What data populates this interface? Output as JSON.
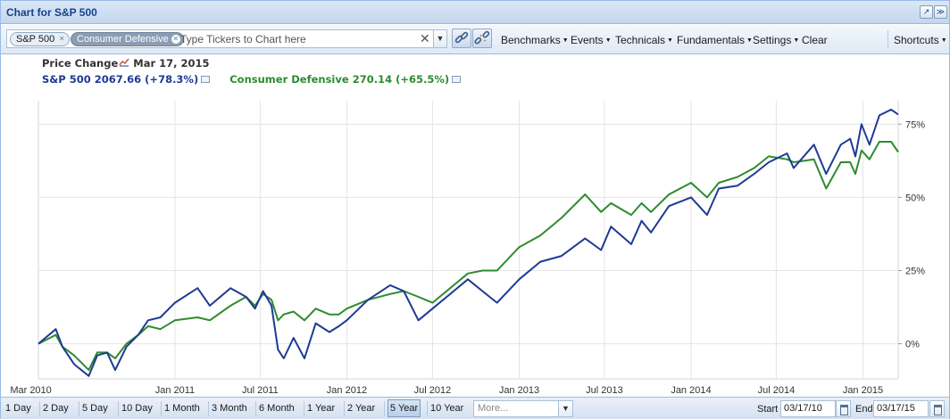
{
  "window": {
    "title": "Chart for S&P 500",
    "restore_icon": "restore-icon",
    "collapse_icon": "collapse-icon"
  },
  "toolbar": {
    "tickers": [
      {
        "label": "S&P 500",
        "remove_icon": "close-icon"
      },
      {
        "label": "Consumer Defensive",
        "remove_icon": "close-icon"
      }
    ],
    "ticker_placeholder": "Type Tickers to Chart here",
    "clear_icon": "clear-x-icon",
    "link_icon": "chain-link-icon",
    "unlink_icon": "broken-link-icon",
    "menus": [
      "Benchmarks",
      "Events",
      "Technicals",
      "Fundamentals",
      "Settings"
    ],
    "clear_label": "Clear",
    "shortcuts_label": "Shortcuts"
  },
  "header": {
    "mode_label": "Price Change",
    "date": "Mar 17, 2015",
    "series": [
      {
        "name": "S&P 500",
        "value": "2067.66",
        "change": "(+78.3%)"
      },
      {
        "name": "Consumer Defensive",
        "value": "270.14",
        "change": "(+65.5%)"
      }
    ]
  },
  "ranges": {
    "options": [
      "1 Day",
      "2 Day",
      "5 Day",
      "10 Day",
      "1 Month",
      "3 Month",
      "6 Month",
      "1 Year",
      "2 Year",
      "5 Year",
      "10 Year"
    ],
    "selected": "5 Year",
    "more_placeholder": "More...",
    "start_label": "Start",
    "start_value": "03/17/10",
    "end_label": "End",
    "end_value": "03/17/15"
  },
  "colors": {
    "sp500": "#1f3a93",
    "consumer_defensive": "#2e8b2e",
    "grid": "#e4e4e4"
  },
  "chart_data": {
    "type": "line",
    "title": "",
    "xlabel": "",
    "ylabel": "",
    "ylim": [
      -12,
      83
    ],
    "y_ticks": [
      0,
      25,
      50,
      75
    ],
    "y_tick_labels": [
      "0%",
      "25%",
      "50%",
      "75%"
    ],
    "xlim": [
      "2010-03-17",
      "2015-03-17"
    ],
    "x_ticks": [
      "2010-03-01",
      "2011-01-01",
      "2011-07-01",
      "2012-01-01",
      "2012-07-01",
      "2013-01-01",
      "2013-07-01",
      "2014-01-01",
      "2014-07-01",
      "2015-01-01"
    ],
    "x_tick_labels": [
      "Mar 2010",
      "Jan 2011",
      "Jul 2011",
      "Jan 2012",
      "Jul 2012",
      "Jan 2013",
      "Jul 2013",
      "Jan 2014",
      "Jul 2014",
      "Jan 2015"
    ],
    "grid": true,
    "series": [
      {
        "name": "S&P 500",
        "color": "#1f3a93",
        "x": [
          "2010-03-17",
          "2010-04-23",
          "2010-05-07",
          "2010-06-01",
          "2010-07-02",
          "2010-07-20",
          "2010-08-10",
          "2010-08-27",
          "2010-09-20",
          "2010-10-15",
          "2010-11-05",
          "2010-12-01",
          "2011-01-01",
          "2011-02-18",
          "2011-03-16",
          "2011-04-29",
          "2011-06-01",
          "2011-06-20",
          "2011-07-07",
          "2011-07-25",
          "2011-08-08",
          "2011-08-20",
          "2011-09-10",
          "2011-10-03",
          "2011-10-27",
          "2011-11-25",
          "2011-12-15",
          "2012-01-01",
          "2012-02-15",
          "2012-04-02",
          "2012-05-01",
          "2012-06-01",
          "2012-07-01",
          "2012-08-15",
          "2012-09-14",
          "2012-10-15",
          "2012-11-15",
          "2013-01-01",
          "2013-02-15",
          "2013-04-01",
          "2013-05-21",
          "2013-06-24",
          "2013-07-15",
          "2013-08-27",
          "2013-09-18",
          "2013-10-08",
          "2013-11-15",
          "2014-01-01",
          "2014-02-04",
          "2014-03-01",
          "2014-04-10",
          "2014-05-15",
          "2014-06-15",
          "2014-07-24",
          "2014-08-07",
          "2014-09-19",
          "2014-10-15",
          "2014-11-15",
          "2014-12-05",
          "2014-12-16",
          "2014-12-29",
          "2015-01-15",
          "2015-02-05",
          "2015-03-02",
          "2015-03-17"
        ],
        "values": [
          0,
          5,
          -1,
          -7,
          -11,
          -4,
          -3,
          -9,
          -1,
          3,
          8,
          9,
          14,
          19,
          13,
          19,
          16,
          12,
          18,
          13,
          -2,
          -5,
          2,
          -5,
          7,
          4,
          6,
          8,
          15,
          20,
          18,
          8,
          12,
          18,
          22,
          18,
          14,
          22,
          28,
          30,
          36,
          32,
          40,
          34,
          42,
          38,
          47,
          50,
          44,
          53,
          54,
          58,
          62,
          65,
          60,
          68,
          58,
          68,
          70,
          64,
          75,
          68,
          78,
          80,
          78.3
        ]
      },
      {
        "name": "Consumer Defensive",
        "color": "#2e8b2e",
        "x": [
          "2010-03-17",
          "2010-04-23",
          "2010-05-07",
          "2010-06-01",
          "2010-07-02",
          "2010-07-20",
          "2010-08-10",
          "2010-08-27",
          "2010-09-20",
          "2010-10-15",
          "2010-11-05",
          "2010-12-01",
          "2011-01-01",
          "2011-02-18",
          "2011-03-16",
          "2011-04-29",
          "2011-06-01",
          "2011-06-20",
          "2011-07-07",
          "2011-07-25",
          "2011-08-08",
          "2011-08-20",
          "2011-09-10",
          "2011-10-03",
          "2011-10-27",
          "2011-11-25",
          "2011-12-15",
          "2012-01-01",
          "2012-02-15",
          "2012-04-02",
          "2012-05-01",
          "2012-06-01",
          "2012-07-01",
          "2012-08-15",
          "2012-09-14",
          "2012-10-15",
          "2012-11-15",
          "2013-01-01",
          "2013-02-15",
          "2013-04-01",
          "2013-05-21",
          "2013-06-24",
          "2013-07-15",
          "2013-08-27",
          "2013-09-18",
          "2013-10-08",
          "2013-11-15",
          "2014-01-01",
          "2014-02-04",
          "2014-03-01",
          "2014-04-10",
          "2014-05-15",
          "2014-06-15",
          "2014-07-24",
          "2014-08-07",
          "2014-09-19",
          "2014-10-15",
          "2014-11-15",
          "2014-12-05",
          "2014-12-16",
          "2014-12-29",
          "2015-01-15",
          "2015-02-05",
          "2015-03-02",
          "2015-03-17"
        ],
        "values": [
          0,
          3,
          -1,
          -4,
          -9,
          -3,
          -3,
          -5,
          0,
          3,
          6,
          5,
          8,
          9,
          8,
          13,
          16,
          13,
          17,
          15,
          8,
          10,
          11,
          8,
          12,
          10,
          10,
          12,
          15,
          17,
          18,
          16,
          14,
          20,
          24,
          25,
          25,
          33,
          37,
          43,
          51,
          45,
          48,
          44,
          48,
          45,
          51,
          55,
          50,
          55,
          57,
          60,
          64,
          63,
          62,
          63,
          53,
          62,
          62,
          58,
          66,
          63,
          69,
          69,
          65.5
        ]
      }
    ]
  }
}
